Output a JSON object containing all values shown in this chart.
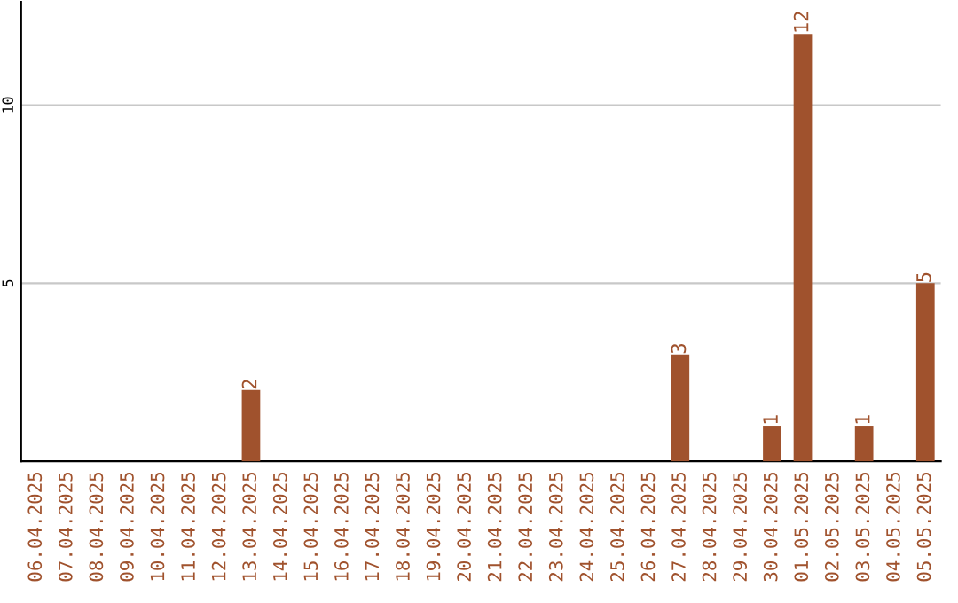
{
  "chart_data": {
    "type": "bar",
    "categories": [
      "06.04.2025",
      "07.04.2025",
      "08.04.2025",
      "09.04.2025",
      "10.04.2025",
      "11.04.2025",
      "12.04.2025",
      "13.04.2025",
      "14.04.2025",
      "15.04.2025",
      "16.04.2025",
      "17.04.2025",
      "18.04.2025",
      "19.04.2025",
      "20.04.2025",
      "21.04.2025",
      "22.04.2025",
      "23.04.2025",
      "24.04.2025",
      "25.04.2025",
      "26.04.2025",
      "27.04.2025",
      "28.04.2025",
      "29.04.2025",
      "30.04.2025",
      "01.05.2025",
      "02.05.2025",
      "03.05.2025",
      "04.05.2025",
      "05.05.2025"
    ],
    "values": [
      0,
      0,
      0,
      0,
      0,
      0,
      0,
      2,
      0,
      0,
      0,
      0,
      0,
      0,
      0,
      0,
      0,
      0,
      0,
      0,
      0,
      3,
      0,
      0,
      1,
      12,
      0,
      1,
      0,
      5
    ],
    "value_labels": [
      null,
      null,
      null,
      null,
      null,
      null,
      null,
      "2",
      null,
      null,
      null,
      null,
      null,
      null,
      null,
      null,
      null,
      null,
      null,
      null,
      null,
      "3",
      null,
      null,
      "1",
      "12",
      null,
      "1",
      null,
      "5"
    ],
    "color": "#a0522d",
    "ylim": [
      0,
      12.9
    ],
    "yticks": [
      5,
      10
    ],
    "grid": "y"
  }
}
